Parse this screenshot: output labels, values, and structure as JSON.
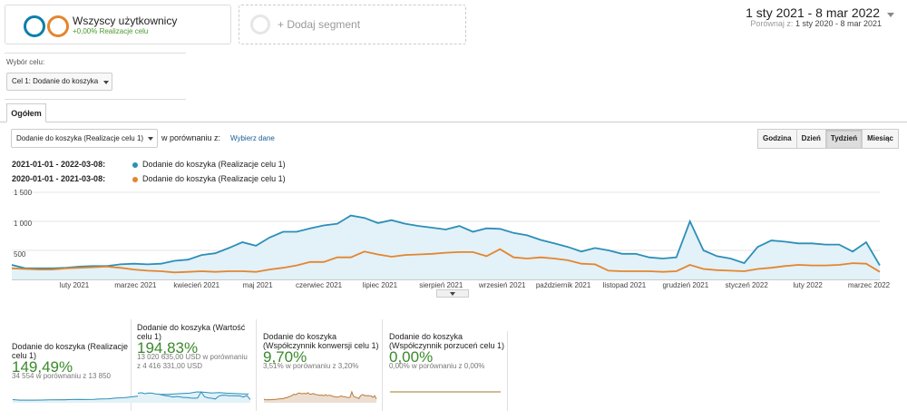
{
  "segment": {
    "title": "Wszyscy użytkownicy",
    "subtitle": "+0,00% Realizacje celu",
    "circle1_color": "#0b7fab",
    "circle2_color": "#e3862f"
  },
  "add_segment": {
    "label": "+ Dodaj segment"
  },
  "date_range": {
    "current": "1 sty 2021 - 8 mar 2022",
    "compare_label": "Porównaj z:",
    "compare_value": "1 sty 2020 - 8 mar 2021"
  },
  "goal_selector": {
    "label": "Wybór celu:",
    "value": "Cel 1: Dodanie do koszyka"
  },
  "tabs": [
    {
      "label": "Ogółem"
    }
  ],
  "metric_selector": {
    "value": "Dodanie do koszyka (Realizacje celu 1)",
    "compare_label": "w porównaniu z:",
    "choose_link": "Wybierz dane"
  },
  "granularity": {
    "buttons": [
      "Godzina",
      "Dzień",
      "Tydzień",
      "Miesiąc"
    ],
    "active": "Tydzień"
  },
  "legend": [
    {
      "range": "2021-01-01 - 2022-03-08:",
      "label": "Dodanie do koszyka (Realizacje celu 1)",
      "color": "#2c8fb8"
    },
    {
      "range": "2020-01-01 - 2021-03-08:",
      "label": "Dodanie do koszyka (Realizacje celu 1)",
      "color": "#e3862f"
    }
  ],
  "chart_data": {
    "type": "area",
    "ylim": [
      0,
      1500
    ],
    "yticks": [
      "1 500",
      "1 000",
      "500"
    ],
    "x_labels": [
      "luty 2021",
      "marzec 2021",
      "kwiecień 2021",
      "maj 2021",
      "czerwiec 2021",
      "lipiec 2021",
      "sierpień 2021",
      "wrzesień 2021",
      "październik 2021",
      "listopad 2021",
      "grudzień 2021",
      "styczeń 2022",
      "luty 2022",
      "marzec 2022"
    ],
    "series": [
      {
        "name": "2021-01-01 - 2022-03-08",
        "color": "#2c8fb8",
        "values": [
          250,
          190,
          190,
          190,
          200,
          220,
          230,
          230,
          260,
          270,
          260,
          270,
          320,
          340,
          420,
          450,
          540,
          640,
          580,
          720,
          820,
          820,
          880,
          930,
          960,
          1100,
          1060,
          970,
          1020,
          960,
          920,
          890,
          860,
          920,
          820,
          880,
          870,
          800,
          760,
          680,
          620,
          560,
          480,
          540,
          500,
          440,
          440,
          380,
          360,
          380,
          1000,
          500,
          400,
          360,
          280,
          560,
          670,
          650,
          620,
          620,
          600,
          600,
          480,
          640,
          240
        ]
      },
      {
        "name": "2020-01-01 - 2021-03-08",
        "color": "#e3862f",
        "values": [
          190,
          180,
          170,
          170,
          190,
          200,
          210,
          220,
          200,
          170,
          150,
          140,
          120,
          130,
          140,
          130,
          140,
          140,
          130,
          170,
          200,
          240,
          300,
          300,
          380,
          380,
          480,
          430,
          390,
          420,
          430,
          440,
          460,
          470,
          470,
          400,
          520,
          380,
          360,
          380,
          360,
          330,
          270,
          260,
          150,
          140,
          140,
          140,
          130,
          140,
          250,
          180,
          160,
          150,
          140,
          180,
          200,
          230,
          250,
          240,
          240,
          250,
          280,
          270,
          130
        ]
      }
    ]
  },
  "kpis": [
    {
      "title": "Dodanie do koszyka (Realizacje celu 1)",
      "value": "149,49%",
      "compare": "34 554 w porównaniu z 13 850"
    },
    {
      "title": "Dodanie do koszyka (Wartość celu 1)",
      "value": "194,83%",
      "compare": "13 020 635,00 USD w porównaniu z 4 416 331,00 USD"
    },
    {
      "title": "Dodanie do koszyka (Współczynnik konwersji celu 1)",
      "value": "9,70%",
      "compare": "3,51% w porównaniu z 3,20%"
    },
    {
      "title": "Dodanie do koszyka (Współczynnik porzuceń celu 1)",
      "value": "0,00%",
      "compare": "0,00% w porównaniu z 0,00%"
    }
  ]
}
